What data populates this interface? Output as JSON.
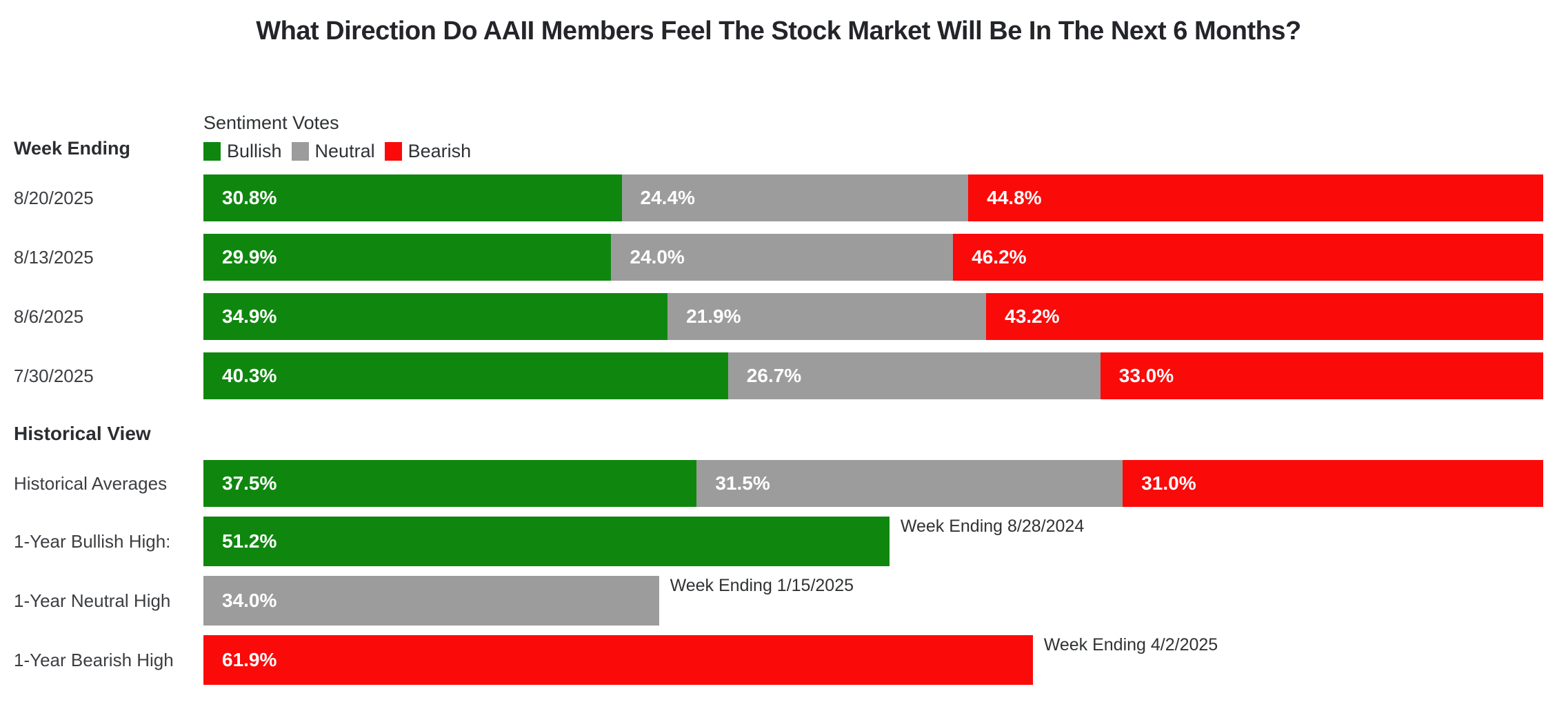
{
  "title": "What Direction Do AAII Members Feel The Stock Market Will Be In The Next 6 Months?",
  "labels": {
    "week_ending": "Week Ending",
    "historical_view": "Historical View"
  },
  "legend": {
    "title": "Sentiment Votes",
    "items": [
      {
        "key": "bullish",
        "label": "Bullish"
      },
      {
        "key": "neutral",
        "label": "Neutral"
      },
      {
        "key": "bearish",
        "label": "Bearish"
      }
    ]
  },
  "colors": {
    "bullish": "#0f870f",
    "neutral": "#9c9c9c",
    "bearish": "#fb0a0a",
    "text_dark": "#232529",
    "text_label": "#3c3e41"
  },
  "weekly_rows": [
    {
      "label": "8/20/2025",
      "bullish": 30.8,
      "bullish_label": "30.8%",
      "neutral": 24.4,
      "neutral_label": "24.4%",
      "bearish": 44.8,
      "bearish_label": "44.8%"
    },
    {
      "label": "8/13/2025",
      "bullish": 29.9,
      "bullish_label": "29.9%",
      "neutral": 24.0,
      "neutral_label": "24.0%",
      "bearish": 46.2,
      "bearish_label": "46.2%"
    },
    {
      "label": "8/6/2025",
      "bullish": 34.9,
      "bullish_label": "34.9%",
      "neutral": 21.9,
      "neutral_label": "21.9%",
      "bearish": 43.2,
      "bearish_label": "43.2%"
    },
    {
      "label": "7/30/2025",
      "bullish": 40.3,
      "bullish_label": "40.3%",
      "neutral": 26.7,
      "neutral_label": "26.7%",
      "bearish": 33.0,
      "bearish_label": "33.0%"
    }
  ],
  "historical": {
    "averages": {
      "label": "Historical Averages",
      "bullish": 37.5,
      "bullish_label": "37.5%",
      "neutral": 31.5,
      "neutral_label": "31.5%",
      "bearish": 31.0,
      "bearish_label": "31.0%"
    },
    "singles": [
      {
        "label": "1-Year Bullish High:",
        "value": 51.2,
        "value_label": "51.2%",
        "color_key": "bullish",
        "annotation": "Week Ending 8/28/2024"
      },
      {
        "label": "1-Year Neutral High",
        "value": 34.0,
        "value_label": "34.0%",
        "color_key": "neutral",
        "annotation": "Week Ending 1/15/2025"
      },
      {
        "label": "1-Year Bearish High",
        "value": 61.9,
        "value_label": "61.9%",
        "color_key": "bearish",
        "annotation": "Week Ending 4/2/2025"
      }
    ]
  },
  "chart_data": [
    {
      "type": "bar",
      "orientation": "horizontal",
      "stacked": true,
      "title": "What Direction Do AAII Members Feel The Stock Market Will Be In The Next 6 Months?",
      "section_label": "Week Ending",
      "legend_title": "Sentiment Votes",
      "legend_position": "top",
      "categories": [
        "8/20/2025",
        "8/13/2025",
        "8/6/2025",
        "7/30/2025"
      ],
      "series": [
        {
          "name": "Bullish",
          "color": "#0f870f",
          "values": [
            30.8,
            29.9,
            34.9,
            40.3
          ]
        },
        {
          "name": "Neutral",
          "color": "#9c9c9c",
          "values": [
            24.4,
            24.0,
            21.9,
            26.7
          ]
        },
        {
          "name": "Bearish",
          "color": "#fb0a0a",
          "values": [
            44.8,
            46.2,
            43.2,
            33.0
          ]
        }
      ],
      "unit": "%",
      "xlim": [
        0,
        100
      ],
      "grid": false,
      "axes_visible": false,
      "data_labels": "inside-left, white bold, formatted as percent"
    },
    {
      "type": "bar",
      "orientation": "horizontal",
      "stacked": true,
      "section_label": "Historical View",
      "categories": [
        "Historical Averages"
      ],
      "series": [
        {
          "name": "Bullish",
          "color": "#0f870f",
          "values": [
            37.5
          ]
        },
        {
          "name": "Neutral",
          "color": "#9c9c9c",
          "values": [
            31.5
          ]
        },
        {
          "name": "Bearish",
          "color": "#fb0a0a",
          "values": [
            31.0
          ]
        }
      ],
      "unit": "%",
      "xlim": [
        0,
        100
      ],
      "grid": false,
      "axes_visible": false
    },
    {
      "type": "bar",
      "orientation": "horizontal",
      "stacked": false,
      "section_label": "Historical View",
      "categories": [
        "1-Year Bullish High:",
        "1-Year Neutral High",
        "1-Year Bearish High"
      ],
      "values": [
        51.2,
        34.0,
        61.9
      ],
      "bar_colors": [
        "#0f870f",
        "#9c9c9c",
        "#fb0a0a"
      ],
      "annotations": [
        "Week Ending 8/28/2024",
        "Week Ending 1/15/2025",
        "Week Ending 4/2/2025"
      ],
      "unit": "%",
      "xlim": [
        0,
        100
      ],
      "grid": false,
      "axes_visible": false
    }
  ]
}
